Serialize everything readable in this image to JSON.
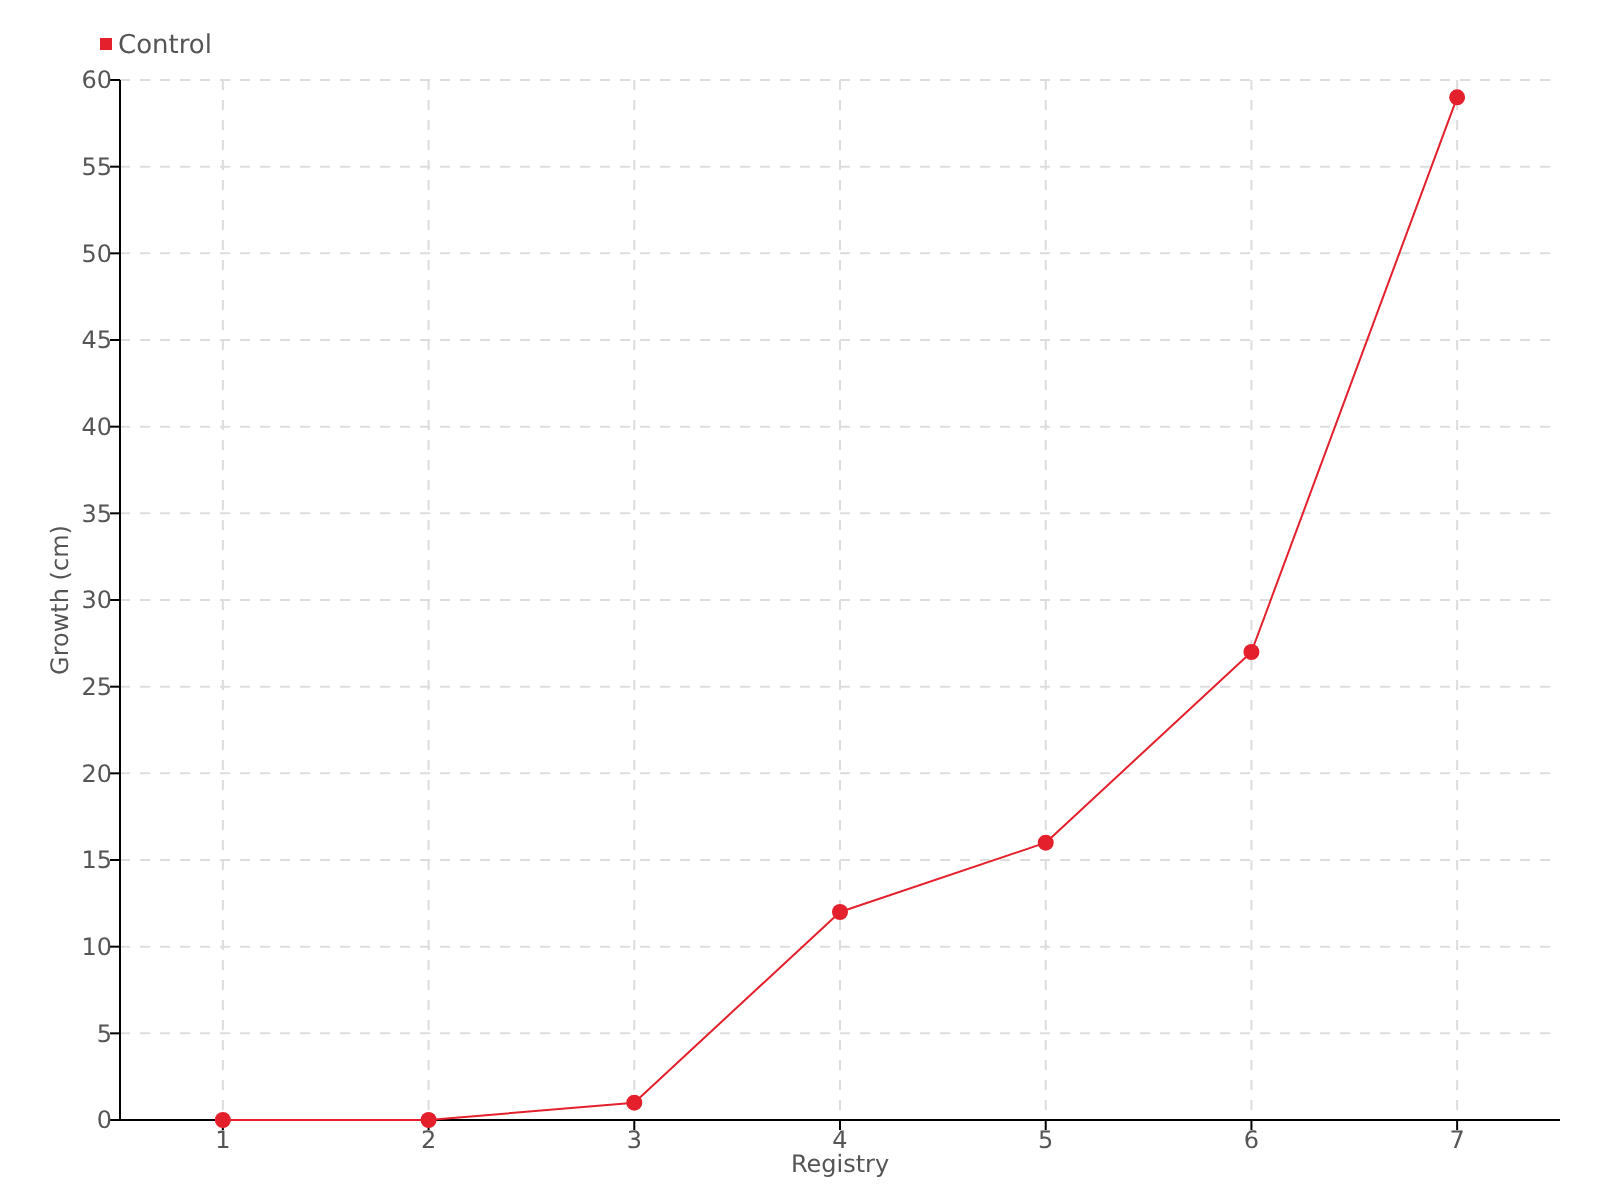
{
  "chart_data": {
    "type": "line",
    "xlabel": "Registry",
    "ylabel": "Growth (cm)",
    "categories": [
      "1",
      "2",
      "3",
      "4",
      "5",
      "6",
      "7"
    ],
    "series": [
      {
        "name": "Control",
        "color": "#e3202c",
        "values": [
          0,
          0,
          1,
          12,
          16,
          27,
          59
        ]
      }
    ],
    "ylim": [
      0,
      60
    ],
    "yticks": [
      0,
      5,
      10,
      15,
      20,
      25,
      30,
      35,
      40,
      45,
      50,
      55,
      60
    ],
    "grid": true,
    "legend": "top left",
    "marker": "circle",
    "line_style": "solid"
  }
}
